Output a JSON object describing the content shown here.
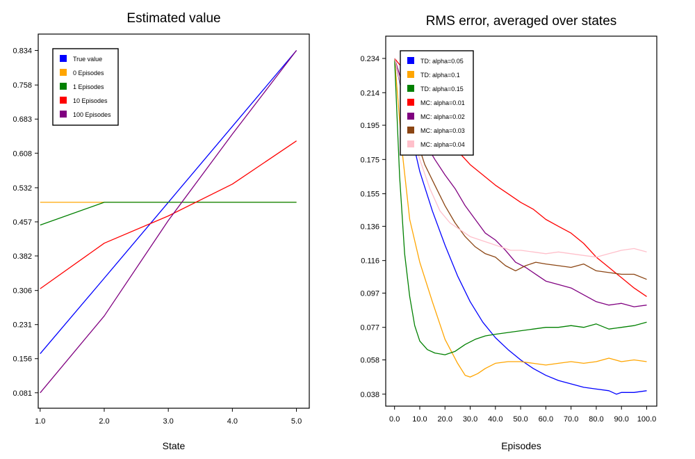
{
  "chart_data": [
    {
      "type": "line",
      "title": "Estimated value",
      "xlabel": "State",
      "ylabel": "",
      "x": [
        1,
        2,
        3,
        4,
        5
      ],
      "xticks": [
        "1.0",
        "2.0",
        "3.0",
        "4.0",
        "5.0"
      ],
      "yticks": [
        "0.081",
        "0.156",
        "0.231",
        "0.306",
        "0.382",
        "0.457",
        "0.532",
        "0.608",
        "0.683",
        "0.758",
        "0.834"
      ],
      "xlim": [
        0.97,
        5.2
      ],
      "ylim": [
        0.047,
        0.87
      ],
      "grid": false,
      "legend": "top-left",
      "series": [
        {
          "name": "True value",
          "color": "#0000ff",
          "values": [
            0.167,
            0.333,
            0.5,
            0.667,
            0.834
          ]
        },
        {
          "name": "0 Episodes",
          "color": "#ffa500",
          "values": [
            0.5,
            0.5,
            0.5,
            0.5,
            0.5
          ]
        },
        {
          "name": "1 Episodes",
          "color": "#008000",
          "values": [
            0.45,
            0.5,
            0.5,
            0.5,
            0.5
          ]
        },
        {
          "name": "10 Episodes",
          "color": "#ff0000",
          "values": [
            0.31,
            0.41,
            0.47,
            0.54,
            0.635
          ]
        },
        {
          "name": "100 Episodes",
          "color": "#800080",
          "values": [
            0.081,
            0.25,
            0.46,
            0.65,
            0.834
          ]
        }
      ]
    },
    {
      "type": "line",
      "title": "RMS error, averaged over states",
      "xlabel": "Episodes",
      "ylabel": "",
      "xticks": [
        "0.0",
        "10.0",
        "20.0",
        "30.0",
        "40.0",
        "50.0",
        "60.0",
        "70.0",
        "80.0",
        "90.0",
        "100.0"
      ],
      "yticks": [
        "0.038",
        "0.058",
        "0.077",
        "0.097",
        "0.116",
        "0.136",
        "0.155",
        "0.175",
        "0.195",
        "0.214",
        "0.234"
      ],
      "xlim": [
        -3.5,
        104
      ],
      "ylim": [
        0.031,
        0.247
      ],
      "grid": false,
      "legend": "top-left",
      "series": [
        {
          "name": "TD: alpha=0.05",
          "color": "#0000ff",
          "points": [
            [
              0,
              0.234
            ],
            [
              5,
              0.2
            ],
            [
              10,
              0.168
            ],
            [
              15,
              0.145
            ],
            [
              20,
              0.125
            ],
            [
              25,
              0.107
            ],
            [
              30,
              0.092
            ],
            [
              35,
              0.08
            ],
            [
              40,
              0.071
            ],
            [
              45,
              0.064
            ],
            [
              50,
              0.058
            ],
            [
              55,
              0.053
            ],
            [
              60,
              0.049
            ],
            [
              65,
              0.046
            ],
            [
              70,
              0.044
            ],
            [
              75,
              0.042
            ],
            [
              80,
              0.041
            ],
            [
              85,
              0.04
            ],
            [
              88,
              0.038
            ],
            [
              90,
              0.039
            ],
            [
              95,
              0.039
            ],
            [
              100,
              0.04
            ]
          ]
        },
        {
          "name": "TD: alpha=0.1",
          "color": "#ffa500",
          "points": [
            [
              0,
              0.234
            ],
            [
              3,
              0.18
            ],
            [
              6,
              0.14
            ],
            [
              10,
              0.115
            ],
            [
              15,
              0.092
            ],
            [
              20,
              0.07
            ],
            [
              25,
              0.056
            ],
            [
              28,
              0.049
            ],
            [
              30,
              0.048
            ],
            [
              33,
              0.05
            ],
            [
              36,
              0.053
            ],
            [
              40,
              0.056
            ],
            [
              45,
              0.057
            ],
            [
              50,
              0.057
            ],
            [
              55,
              0.056
            ],
            [
              60,
              0.055
            ],
            [
              65,
              0.056
            ],
            [
              70,
              0.057
            ],
            [
              75,
              0.056
            ],
            [
              80,
              0.057
            ],
            [
              85,
              0.059
            ],
            [
              90,
              0.057
            ],
            [
              95,
              0.058
            ],
            [
              100,
              0.057
            ]
          ]
        },
        {
          "name": "TD: alpha=0.15",
          "color": "#008000",
          "points": [
            [
              0,
              0.234
            ],
            [
              2,
              0.165
            ],
            [
              4,
              0.12
            ],
            [
              6,
              0.095
            ],
            [
              8,
              0.078
            ],
            [
              10,
              0.069
            ],
            [
              13,
              0.064
            ],
            [
              16,
              0.062
            ],
            [
              20,
              0.061
            ],
            [
              24,
              0.063
            ],
            [
              28,
              0.067
            ],
            [
              32,
              0.07
            ],
            [
              36,
              0.072
            ],
            [
              40,
              0.073
            ],
            [
              45,
              0.074
            ],
            [
              50,
              0.075
            ],
            [
              55,
              0.076
            ],
            [
              60,
              0.077
            ],
            [
              65,
              0.077
            ],
            [
              70,
              0.078
            ],
            [
              75,
              0.077
            ],
            [
              80,
              0.079
            ],
            [
              85,
              0.076
            ],
            [
              90,
              0.077
            ],
            [
              95,
              0.078
            ],
            [
              100,
              0.08
            ]
          ]
        },
        {
          "name": "MC: alpha=0.01",
          "color": "#ff0000",
          "points": [
            [
              0,
              0.234
            ],
            [
              5,
              0.225
            ],
            [
              10,
              0.212
            ],
            [
              15,
              0.2
            ],
            [
              20,
              0.188
            ],
            [
              25,
              0.18
            ],
            [
              30,
              0.172
            ],
            [
              35,
              0.166
            ],
            [
              40,
              0.16
            ],
            [
              45,
              0.155
            ],
            [
              50,
              0.15
            ],
            [
              55,
              0.146
            ],
            [
              60,
              0.14
            ],
            [
              65,
              0.136
            ],
            [
              70,
              0.132
            ],
            [
              75,
              0.126
            ],
            [
              80,
              0.118
            ],
            [
              85,
              0.112
            ],
            [
              90,
              0.106
            ],
            [
              95,
              0.1
            ],
            [
              100,
              0.095
            ]
          ]
        },
        {
          "name": "MC: alpha=0.02",
          "color": "#800080",
          "points": [
            [
              0,
              0.234
            ],
            [
              4,
              0.215
            ],
            [
              8,
              0.2
            ],
            [
              12,
              0.185
            ],
            [
              16,
              0.175
            ],
            [
              20,
              0.166
            ],
            [
              24,
              0.158
            ],
            [
              28,
              0.148
            ],
            [
              32,
              0.14
            ],
            [
              36,
              0.132
            ],
            [
              40,
              0.128
            ],
            [
              44,
              0.122
            ],
            [
              48,
              0.115
            ],
            [
              52,
              0.112
            ],
            [
              56,
              0.108
            ],
            [
              60,
              0.104
            ],
            [
              65,
              0.102
            ],
            [
              70,
              0.1
            ],
            [
              75,
              0.096
            ],
            [
              80,
              0.092
            ],
            [
              85,
              0.09
            ],
            [
              90,
              0.091
            ],
            [
              95,
              0.089
            ],
            [
              100,
              0.09
            ]
          ]
        },
        {
          "name": "MC: alpha=0.03",
          "color": "#8b4513",
          "points": [
            [
              0,
              0.234
            ],
            [
              4,
              0.208
            ],
            [
              8,
              0.19
            ],
            [
              12,
              0.172
            ],
            [
              16,
              0.16
            ],
            [
              20,
              0.148
            ],
            [
              24,
              0.138
            ],
            [
              28,
              0.13
            ],
            [
              32,
              0.124
            ],
            [
              36,
              0.12
            ],
            [
              40,
              0.118
            ],
            [
              44,
              0.113
            ],
            [
              48,
              0.11
            ],
            [
              52,
              0.113
            ],
            [
              56,
              0.115
            ],
            [
              60,
              0.114
            ],
            [
              65,
              0.113
            ],
            [
              70,
              0.112
            ],
            [
              75,
              0.114
            ],
            [
              80,
              0.11
            ],
            [
              85,
              0.109
            ],
            [
              90,
              0.108
            ],
            [
              95,
              0.108
            ],
            [
              100,
              0.105
            ]
          ]
        },
        {
          "name": "MC: alpha=0.04",
          "color": "#ffc0cb",
          "points": [
            [
              0,
              0.234
            ],
            [
              3,
              0.215
            ],
            [
              6,
              0.195
            ],
            [
              10,
              0.175
            ],
            [
              14,
              0.158
            ],
            [
              18,
              0.145
            ],
            [
              22,
              0.138
            ],
            [
              26,
              0.134
            ],
            [
              30,
              0.13
            ],
            [
              34,
              0.128
            ],
            [
              38,
              0.126
            ],
            [
              42,
              0.124
            ],
            [
              46,
              0.122
            ],
            [
              50,
              0.122
            ],
            [
              55,
              0.121
            ],
            [
              60,
              0.12
            ],
            [
              65,
              0.121
            ],
            [
              70,
              0.12
            ],
            [
              75,
              0.119
            ],
            [
              80,
              0.118
            ],
            [
              85,
              0.12
            ],
            [
              90,
              0.122
            ],
            [
              95,
              0.123
            ],
            [
              100,
              0.121
            ]
          ]
        }
      ]
    }
  ]
}
